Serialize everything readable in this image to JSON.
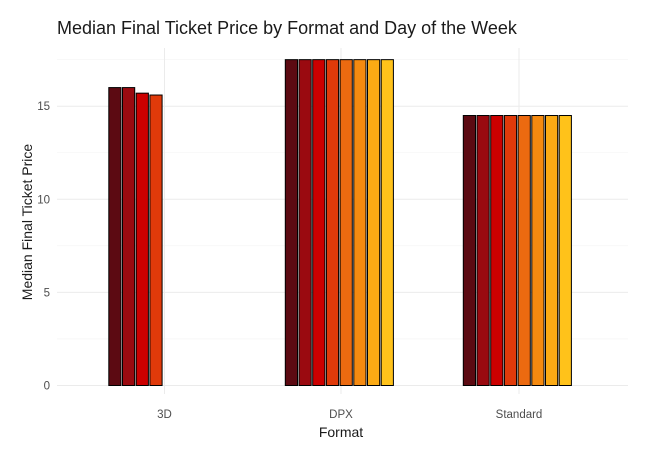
{
  "chart_data": {
    "type": "bar",
    "title": "Median Final Ticket Price by Format and Day of the Week",
    "xlabel": "Format",
    "ylabel": "Median Final Ticket Price",
    "categories": [
      "3D",
      "DPX",
      "Standard"
    ],
    "y_ticks": [
      "0",
      "5",
      "10",
      "15"
    ],
    "ylim": [
      0,
      17.6
    ],
    "grid": true,
    "legend": "none",
    "series": [
      {
        "values": [
          16.0,
          17.5,
          14.5
        ],
        "color": "#5c0a12"
      },
      {
        "values": [
          16.0,
          17.5,
          14.5
        ],
        "color": "#9a0a10"
      },
      {
        "values": [
          15.7,
          17.5,
          14.5
        ],
        "color": "#cc0000"
      },
      {
        "values": [
          15.6,
          17.5,
          14.5
        ],
        "color": "#e03a0a"
      },
      {
        "values": [
          null,
          17.5,
          14.5
        ],
        "color": "#ec6a10"
      },
      {
        "values": [
          null,
          17.5,
          14.5
        ],
        "color": "#f58a10"
      },
      {
        "values": [
          null,
          17.5,
          14.5
        ],
        "color": "#fbaa14"
      },
      {
        "values": [
          null,
          17.5,
          14.5
        ],
        "color": "#ffc21a"
      }
    ]
  }
}
